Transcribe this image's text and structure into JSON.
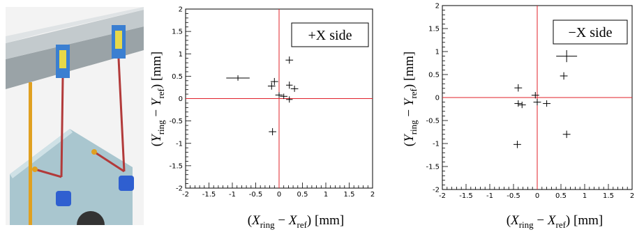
{
  "figure": {
    "photo_alt": "3D model of hanging pendulum supports",
    "colors": {
      "crosshair": "#e0202a",
      "marker": "#000000",
      "frame": "#000000",
      "photo_bg": "#f3f3f3",
      "beam": "#9aa3a7",
      "plate": "#a9c6cf",
      "bracket": "#3b7fd1",
      "wire": "#b23a3a",
      "gold": "#e0a020"
    }
  },
  "chart_data": [
    {
      "type": "scatter",
      "legend": "+X side",
      "legend_placement": "top-right",
      "xlabel": "(X_ring − X_ref)  [mm]",
      "ylabel": "(Y_ring − Y_ref)  [mm]",
      "xlim": [
        -2,
        2
      ],
      "ylim": [
        -2,
        2
      ],
      "xticks": [
        "-2",
        "-1.5",
        "-1",
        "-0.5",
        "0",
        "0.5",
        "1",
        "1.5",
        "2"
      ],
      "yticks": [
        "-2",
        "-1.5",
        "-1",
        "-0.5",
        "0",
        "0.5",
        "1",
        "1.5",
        "2"
      ],
      "grid": false,
      "reference_lines": {
        "x": 0,
        "y": 0
      },
      "points": [
        {
          "x": -0.88,
          "y": 0.46,
          "xerr": 0.25,
          "yerr": 0.06
        },
        {
          "x": -0.16,
          "y": 0.28,
          "xerr": 0.08,
          "yerr": 0.08
        },
        {
          "x": -0.1,
          "y": 0.38,
          "xerr": 0.08,
          "yerr": 0.08
        },
        {
          "x": 0.0,
          "y": 0.08,
          "xerr": 0.08,
          "yerr": 0.06
        },
        {
          "x": 0.1,
          "y": 0.05,
          "xerr": 0.08,
          "yerr": 0.06
        },
        {
          "x": 0.22,
          "y": 0.86,
          "xerr": 0.08,
          "yerr": 0.08
        },
        {
          "x": 0.22,
          "y": 0.3,
          "xerr": 0.07,
          "yerr": 0.08
        },
        {
          "x": 0.22,
          "y": -0.02,
          "xerr": 0.07,
          "yerr": 0.07
        },
        {
          "x": 0.33,
          "y": 0.22,
          "xerr": 0.08,
          "yerr": 0.07
        },
        {
          "x": -0.14,
          "y": -0.74,
          "xerr": 0.08,
          "yerr": 0.08
        }
      ]
    },
    {
      "type": "scatter",
      "legend": "−X side",
      "legend_placement": "top-right",
      "xlabel": "(X_ring − X_ref)  [mm]",
      "ylabel": "(Y_ring − Y_ref)  [mm]",
      "xlim": [
        -2,
        2
      ],
      "ylim": [
        -2,
        2
      ],
      "xticks": [
        "-2",
        "-1.5",
        "-1",
        "-0.5",
        "0",
        "0.5",
        "1",
        "1.5",
        "2"
      ],
      "yticks": [
        "-2",
        "-1.5",
        "-1",
        "-0.5",
        "0",
        "0.5",
        "1",
        "1.5",
        "2"
      ],
      "grid": false,
      "reference_lines": {
        "x": 0,
        "y": 0
      },
      "points": [
        {
          "x": 0.62,
          "y": 0.9,
          "xerr": 0.22,
          "yerr": 0.13
        },
        {
          "x": 0.56,
          "y": 0.47,
          "xerr": 0.08,
          "yerr": 0.08
        },
        {
          "x": -0.4,
          "y": 0.21,
          "xerr": 0.08,
          "yerr": 0.08
        },
        {
          "x": -0.04,
          "y": 0.05,
          "xerr": 0.08,
          "yerr": 0.07
        },
        {
          "x": -0.4,
          "y": -0.13,
          "xerr": 0.08,
          "yerr": 0.07
        },
        {
          "x": -0.32,
          "y": -0.16,
          "xerr": 0.08,
          "yerr": 0.07
        },
        {
          "x": 0.0,
          "y": -0.1,
          "xerr": 0.08,
          "yerr": 0.07
        },
        {
          "x": 0.2,
          "y": -0.13,
          "xerr": 0.08,
          "yerr": 0.07
        },
        {
          "x": -0.42,
          "y": -1.02,
          "xerr": 0.08,
          "yerr": 0.08
        },
        {
          "x": 0.62,
          "y": -0.8,
          "xerr": 0.08,
          "yerr": 0.08
        }
      ]
    }
  ]
}
